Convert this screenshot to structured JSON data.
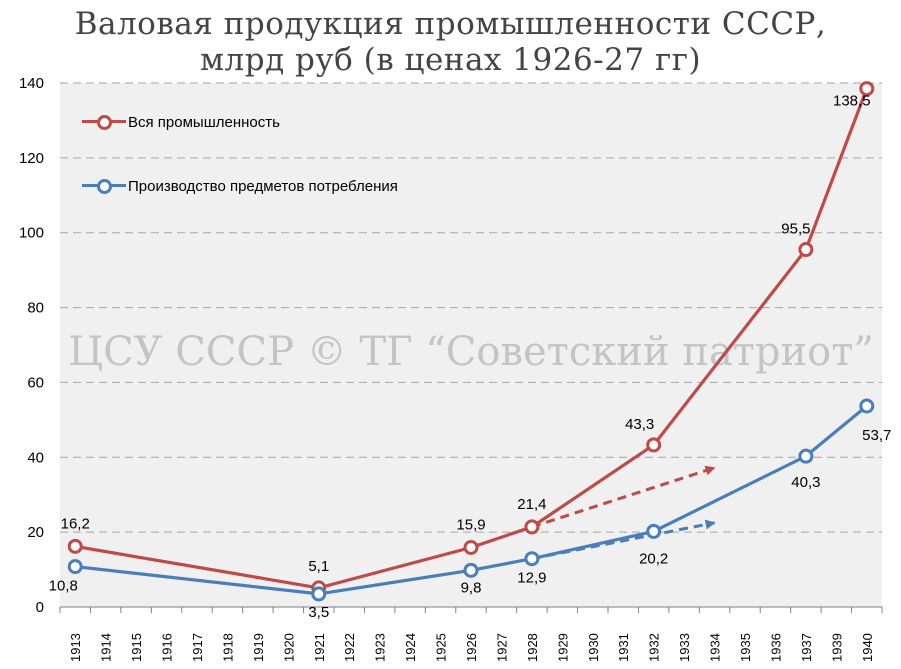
{
  "chart_data": {
    "type": "line",
    "title": "Валовая продукция промышленности СССР, млрд руб (в ценах 1926-27 гг)",
    "title_lines": [
      "Валовая продукция промышленности СССР,",
      "млрд руб (в ценах 1926-27 гг)"
    ],
    "watermark": "ЦСУ СССР © ТГ “Советский патриот”",
    "categories": [
      "1913",
      "1914",
      "1915",
      "1916",
      "1917",
      "1918",
      "1919",
      "1920",
      "1921",
      "1922",
      "1923",
      "1924",
      "1925",
      "1926",
      "1927",
      "1928",
      "1929",
      "1930",
      "1931",
      "1932",
      "1933",
      "1934",
      "1935",
      "1936",
      "1937",
      "1939",
      "1940"
    ],
    "ylim": [
      0,
      140
    ],
    "yticks": [
      0,
      20,
      40,
      60,
      80,
      100,
      120,
      140
    ],
    "grid": true,
    "legend_position": "top-left",
    "series": [
      {
        "name": "Вся промышленность",
        "color": "#be4b48",
        "points": [
          {
            "x": "1913",
            "y": 16.2,
            "label": "16,2"
          },
          {
            "x": "1921",
            "y": 5.1,
            "label": "5,1"
          },
          {
            "x": "1926",
            "y": 15.9,
            "label": "15,9"
          },
          {
            "x": "1928",
            "y": 21.4,
            "label": "21,4"
          },
          {
            "x": "1932",
            "y": 43.3,
            "label": "43,3"
          },
          {
            "x": "1937",
            "y": 95.5,
            "label": "95,5"
          },
          {
            "x": "1940",
            "y": 138.5,
            "label": "138,5"
          }
        ]
      },
      {
        "name": "Производство предметов потребления",
        "color": "#4a7ebb",
        "points": [
          {
            "x": "1913",
            "y": 10.8,
            "label": "10,8"
          },
          {
            "x": "1921",
            "y": 3.5,
            "label": "3,5"
          },
          {
            "x": "1926",
            "y": 9.8,
            "label": "9,8"
          },
          {
            "x": "1928",
            "y": 12.9,
            "label": "12,9"
          },
          {
            "x": "1932",
            "y": 20.2,
            "label": "20,2"
          },
          {
            "x": "1937",
            "y": 40.3,
            "label": "40,3"
          },
          {
            "x": "1940",
            "y": 53.7,
            "label": "53,7"
          }
        ]
      }
    ],
    "trend_arrows": [
      {
        "color": "#be4b48",
        "from": {
          "x": "1928",
          "y": 21.4
        },
        "to": {
          "x": "1934",
          "y": 37.2
        }
      },
      {
        "color": "#4a7ebb",
        "from": {
          "x": "1928",
          "y": 12.9
        },
        "to": {
          "x": "1934",
          "y": 22.5
        }
      }
    ]
  }
}
